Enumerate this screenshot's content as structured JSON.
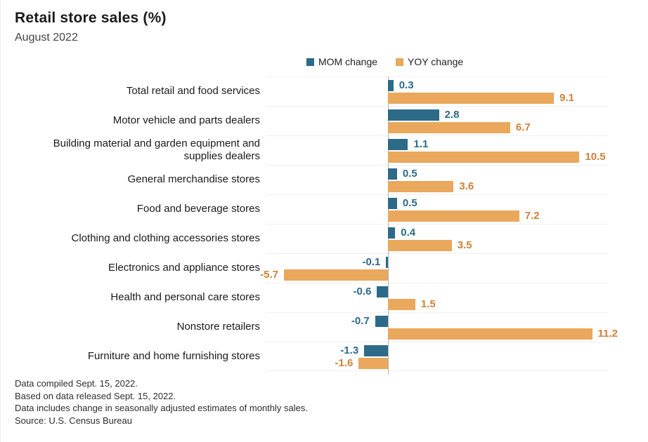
{
  "chart_data": {
    "type": "bar",
    "orientation": "horizontal",
    "title": "Retail store sales (%)",
    "subtitle": "August 2022",
    "categories": [
      "Total retail and food services",
      "Motor vehicle and parts dealers",
      "Building material and garden equipment and supplies dealers",
      "General merchandise stores",
      "Food and beverage stores",
      "Clothing and clothing accessories stores",
      "Electronics and appliance stores",
      "Health and personal care stores",
      "Nonstore retailers",
      "Furniture and home furnishing stores"
    ],
    "series": [
      {
        "name": "MOM change",
        "color": "#2c6a88",
        "label_color": "#2c6a88",
        "values": [
          0.3,
          2.8,
          1.1,
          0.5,
          0.5,
          0.4,
          -0.1,
          -0.6,
          -0.7,
          -1.3
        ]
      },
      {
        "name": "YOY change",
        "color": "#e9a85c",
        "label_color": "#cf8138",
        "values": [
          9.1,
          6.7,
          10.5,
          3.6,
          7.2,
          3.5,
          -5.7,
          1.5,
          11.2,
          -1.6
        ]
      }
    ],
    "xlim": [
      -6.7,
      12.1
    ],
    "value_labels": "outside bar ends, one decimal",
    "legend_position": "top",
    "grid": "light horizontal row separators only, vertical zero axis line",
    "gridline_color": "#f0f0f0",
    "axis_line_color": "#b3b3b3"
  },
  "footnotes": [
    "Data compiled Sept. 15, 2022.",
    "Based on data released Sept. 15, 2022.",
    "Data includes change in seasonally adjusted estimates of monthly sales.",
    "Source: U.S. Census Bureau"
  ]
}
